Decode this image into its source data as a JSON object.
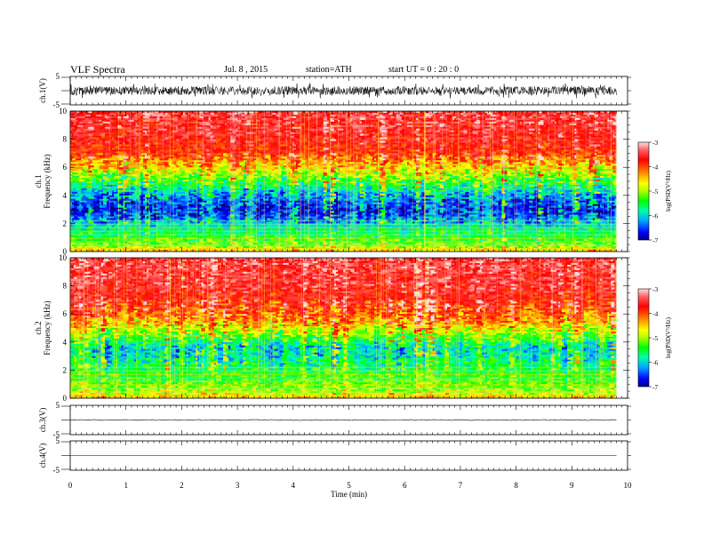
{
  "header": {
    "title": "VLF  Spectra",
    "date": "Jul.  8  , 2015",
    "station": "station=ATH",
    "start": "start  UT  =   0  : 20 : 0"
  },
  "chart_data": [
    {
      "type": "line",
      "panel": "ch1-waveform",
      "ylabel": "ch.1(V)",
      "yticks": [
        "5",
        "-5"
      ],
      "ylim": [
        -5,
        5
      ],
      "x_range_min": [
        0,
        9.8
      ],
      "amplitude_V": 1.5,
      "trace_color": "#000000"
    },
    {
      "type": "heatmap",
      "panel": "ch1-spectrogram",
      "ylabel": "ch.1\nFrequency  (kHz)",
      "ylabel_lines": [
        "ch.1",
        "Frequency  (kHz)"
      ],
      "yticks": [
        "0",
        "2",
        "4",
        "6",
        "8",
        "10"
      ],
      "ylim_kHz": [
        0,
        10
      ],
      "x_range_min": [
        0,
        9.8
      ],
      "colorbar": {
        "label": "log(PSD(V²/Hz)",
        "ticks": [
          "-3",
          "-4",
          "-5",
          "-6",
          "-7"
        ],
        "range": [
          -7,
          -3
        ],
        "colors": [
          "#000080",
          "#0000ff",
          "#00aaff",
          "#00ffaa",
          "#00ff00",
          "#aaff00",
          "#ffff00",
          "#ffaa00",
          "#ff5000",
          "#ff0000",
          "#ff6060",
          "#ffe0e0"
        ]
      },
      "profile_logPSD": [
        {
          "f_kHz": 0.0,
          "v": -4.5
        },
        {
          "f_kHz": 0.3,
          "v": -5.0
        },
        {
          "f_kHz": 0.8,
          "v": -5.3
        },
        {
          "f_kHz": 1.5,
          "v": -5.7
        },
        {
          "f_kHz": 2.3,
          "v": -6.3
        },
        {
          "f_kHz": 3.0,
          "v": -6.7
        },
        {
          "f_kHz": 4.0,
          "v": -6.2
        },
        {
          "f_kHz": 5.0,
          "v": -5.4
        },
        {
          "f_kHz": 6.0,
          "v": -4.6
        },
        {
          "f_kHz": 7.0,
          "v": -3.9
        },
        {
          "f_kHz": 8.5,
          "v": -3.6
        },
        {
          "f_kHz": 10.0,
          "v": -3.5
        }
      ]
    },
    {
      "type": "heatmap",
      "panel": "ch2-spectrogram",
      "ylabel": "ch.2\nFrequency  (kHz)",
      "ylabel_lines": [
        "ch.2",
        "Frequency  (kHz)"
      ],
      "yticks": [
        "0",
        "2",
        "4",
        "6",
        "8",
        "10"
      ],
      "ylim_kHz": [
        0,
        10
      ],
      "x_range_min": [
        0,
        9.8
      ],
      "colorbar": {
        "label": "log(PSD(V²/Hz)",
        "ticks": [
          "-3",
          "-4",
          "-5",
          "-6",
          "-7"
        ],
        "range": [
          -7,
          -3
        ]
      },
      "profile_logPSD": [
        {
          "f_kHz": 0.0,
          "v": -4.6
        },
        {
          "f_kHz": 0.5,
          "v": -5.0
        },
        {
          "f_kHz": 1.0,
          "v": -5.2
        },
        {
          "f_kHz": 2.0,
          "v": -5.5
        },
        {
          "f_kHz": 3.0,
          "v": -5.9
        },
        {
          "f_kHz": 3.6,
          "v": -6.0
        },
        {
          "f_kHz": 4.5,
          "v": -5.2
        },
        {
          "f_kHz": 5.5,
          "v": -4.4
        },
        {
          "f_kHz": 6.5,
          "v": -3.9
        },
        {
          "f_kHz": 8.0,
          "v": -3.6
        },
        {
          "f_kHz": 10.0,
          "v": -3.5
        }
      ]
    },
    {
      "type": "line",
      "panel": "ch3-waveform",
      "ylabel": "ch.3(V)",
      "yticks": [
        "5",
        "-5"
      ],
      "ylim": [
        -5,
        5
      ],
      "x_range_min": [
        0,
        9.8
      ],
      "amplitude_V": 0.15
    },
    {
      "type": "line",
      "panel": "ch4-waveform",
      "ylabel": "ch.4(V)",
      "yticks": [
        "5",
        "-5"
      ],
      "ylim": [
        -5,
        5
      ],
      "x_range_min": [
        0,
        9.8
      ],
      "amplitude_V": 0.0
    }
  ],
  "xaxis": {
    "label": "Time  (min)",
    "ticks": [
      "0",
      "1",
      "2",
      "3",
      "4",
      "5",
      "6",
      "7",
      "8",
      "9",
      "10"
    ],
    "xlim": [
      0,
      10
    ]
  }
}
